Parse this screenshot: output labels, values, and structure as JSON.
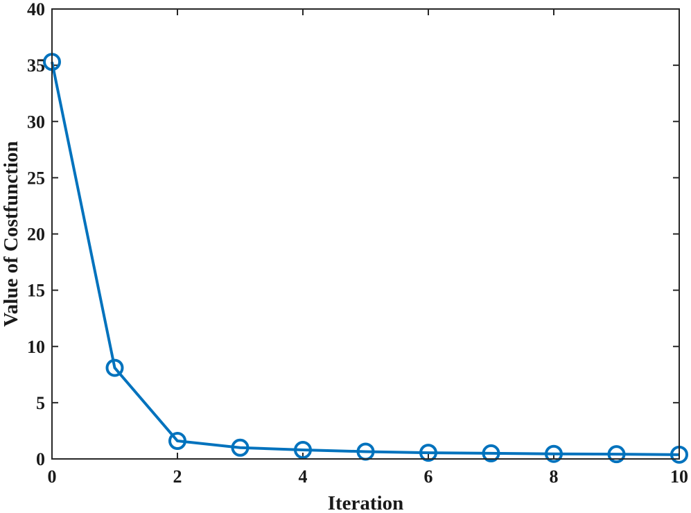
{
  "chart_data": {
    "type": "line",
    "title": "",
    "xlabel": "Iteration",
    "ylabel": "Value of Costfunction",
    "xlim": [
      0,
      10
    ],
    "ylim": [
      0,
      40
    ],
    "xticks": [
      0,
      2,
      4,
      6,
      8,
      10
    ],
    "yticks": [
      0,
      5,
      10,
      15,
      20,
      25,
      30,
      35,
      40
    ],
    "grid": false,
    "series": [
      {
        "marker": "circle",
        "color": "#0072BD",
        "x": [
          0,
          1,
          2,
          3,
          4,
          5,
          6,
          7,
          8,
          9,
          10
        ],
        "y": [
          35.3,
          8.1,
          1.6,
          1.0,
          0.8,
          0.65,
          0.55,
          0.5,
          0.45,
          0.42,
          0.38
        ]
      }
    ]
  }
}
